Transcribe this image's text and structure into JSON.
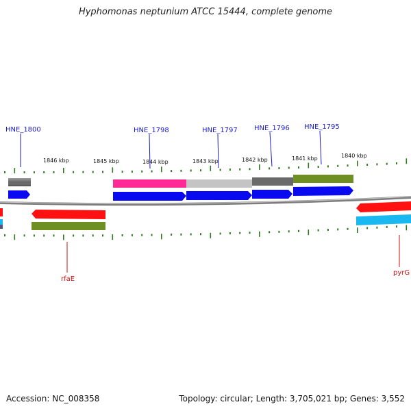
{
  "title": "Hyphomonas neptunium ATCC 15444, complete genome",
  "footer": {
    "accession": "Accession: NC_008358",
    "topology": "Topology: circular; Length: 3,705,021 bp; Genes: 3,552"
  },
  "colors": {
    "backbone": "#8a8a8a",
    "tick": "#2f7a1f",
    "forward_label": "#1a1acc",
    "reverse_label": "#cc1111",
    "cds_blue": "#0a0af0",
    "cds_red": "#ff1111",
    "cds_cyan": "#1ab8f0",
    "olive": "#6f8f22",
    "pink": "#ff2a96",
    "grey_dark": "#6a6a6a",
    "grey_light": "#c4c4c4"
  },
  "tick_labels": [
    "1846 kbp",
    "1845 kbp",
    "1844 kbp",
    "1843 kbp",
    "1842 kbp",
    "1841 kbp",
    "1840 kbp"
  ],
  "gene_labels": {
    "forward": [
      "HNE_1800",
      "HNE_1798",
      "HNE_1797",
      "HNE_1796",
      "HNE_1795"
    ],
    "reverse": [
      "rfaE",
      "pyrG"
    ]
  }
}
